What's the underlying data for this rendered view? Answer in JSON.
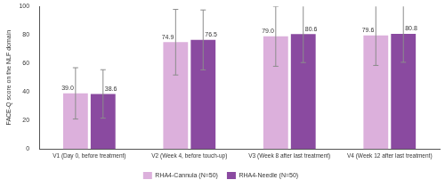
{
  "chart_data": {
    "type": "bar",
    "y_label": "FACE-Q score on the NLF domain",
    "categories": [
      "V1 (Day 0, before treatment)",
      "V2 (Week 4, before touch-up)",
      "V3 (Week 8 after last treatment)",
      "V4 (Week 12 after last treatment)"
    ],
    "series": [
      {
        "name": "RHA4-Cannula (N=50)",
        "color": "#dcb0dc",
        "values": [
          39.0,
          74.9,
          79.0,
          79.6
        ],
        "value_labels": [
          "39.0",
          "74.9",
          "79.0",
          "79.6"
        ],
        "errors": [
          18,
          23,
          21,
          21
        ]
      },
      {
        "name": "RHA4-Needle (N=50)",
        "color": "#8a4aa0",
        "values": [
          38.6,
          76.5,
          80.6,
          80.8
        ],
        "value_labels": [
          "38.6",
          "76.5",
          "80.6",
          "80.8"
        ],
        "errors": [
          17,
          21,
          20,
          20
        ]
      }
    ],
    "ylim": [
      0,
      100
    ],
    "yticks": [
      0,
      20,
      40,
      60,
      80,
      100
    ],
    "grid": false,
    "legend": "bottom",
    "data_labels": true
  }
}
